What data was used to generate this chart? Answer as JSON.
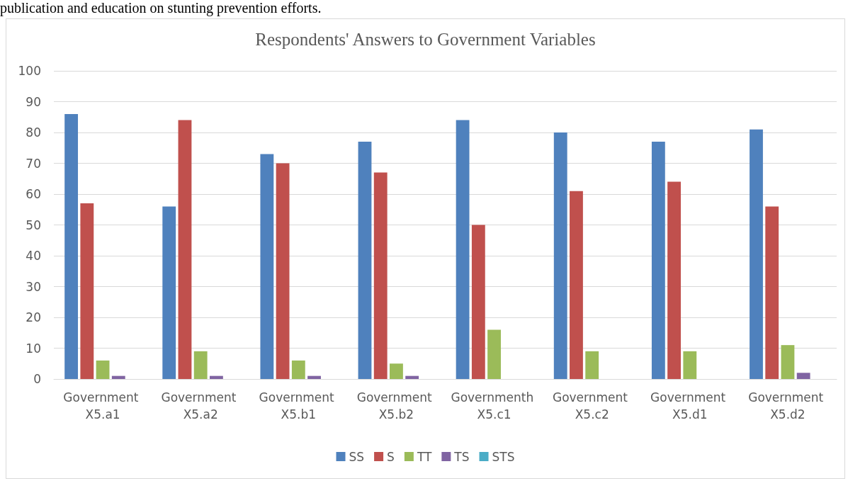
{
  "chart_data": {
    "type": "bar",
    "title": "Respondents' Answers to Government Variables",
    "annotations": [
      "publication and education on stunting prevention efforts."
    ],
    "categories": [
      "Government X5.a1",
      "Government X5.a2",
      "Government X5.b1",
      "Government X5.b2",
      "Governmenth X5.c1",
      "Government X5.c2",
      "Government X5.d1",
      "Government X5.d2"
    ],
    "series": [
      {
        "name": "SS",
        "color": "#4f81bd",
        "values": [
          86,
          56,
          73,
          77,
          84,
          80,
          77,
          81
        ]
      },
      {
        "name": "S",
        "color": "#c0504d",
        "values": [
          57,
          84,
          70,
          67,
          50,
          61,
          64,
          56
        ]
      },
      {
        "name": "TT",
        "color": "#9bbb59",
        "values": [
          6,
          9,
          6,
          5,
          16,
          9,
          9,
          11
        ]
      },
      {
        "name": "TS",
        "color": "#8064a2",
        "values": [
          1,
          1,
          1,
          1,
          0,
          0,
          0,
          2
        ]
      },
      {
        "name": "STS",
        "color": "#4bacc6",
        "values": [
          0,
          0,
          0,
          0,
          0,
          0,
          0,
          0
        ]
      }
    ],
    "ylim": [
      0,
      100
    ],
    "yticks": [
      0,
      10,
      20,
      30,
      40,
      50,
      60,
      70,
      80,
      90,
      100
    ],
    "grid": "y",
    "legend": "bottom"
  }
}
